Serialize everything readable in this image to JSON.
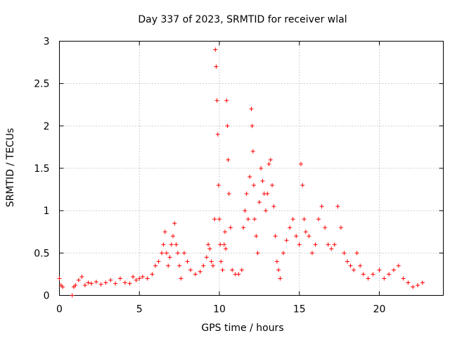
{
  "chart_data": {
    "type": "scatter",
    "title": "Day 337 of 2023, SRMTID for receiver wlal",
    "xlabel": "GPS time / hours",
    "ylabel": "SRMTID / TECUs",
    "xlim": [
      0,
      24
    ],
    "ylim": [
      0,
      3
    ],
    "xticks": [
      0,
      5,
      10,
      15,
      20
    ],
    "xtick_labels": [
      "0",
      "5",
      "10",
      "15",
      "20"
    ],
    "yticks": [
      0,
      0.5,
      1,
      1.5,
      2,
      2.5,
      3
    ],
    "ytick_labels": [
      "0",
      "0.5",
      "1",
      "1.5",
      "2",
      "2.5",
      "3"
    ],
    "grid": true,
    "marker": "+",
    "color": "#ff0000",
    "series": [
      {
        "name": "SRMTID",
        "x": [
          0.0,
          0.1,
          0.2,
          0.8,
          0.9,
          1.0,
          1.2,
          1.4,
          1.6,
          1.8,
          2.0,
          2.3,
          2.6,
          2.9,
          3.2,
          3.5,
          3.8,
          4.1,
          4.4,
          4.6,
          4.8,
          5.0,
          5.2,
          5.5,
          5.8,
          6.0,
          6.2,
          6.4,
          6.5,
          6.6,
          6.7,
          6.8,
          6.9,
          7.0,
          7.1,
          7.2,
          7.3,
          7.4,
          7.5,
          7.6,
          7.8,
          8.0,
          8.2,
          8.5,
          8.8,
          9.0,
          9.2,
          9.3,
          9.4,
          9.5,
          9.6,
          9.7,
          9.75,
          9.8,
          9.85,
          9.9,
          9.95,
          10.0,
          10.05,
          10.1,
          10.2,
          10.3,
          10.35,
          10.4,
          10.45,
          10.5,
          10.55,
          10.6,
          10.7,
          10.8,
          11.0,
          11.2,
          11.4,
          11.5,
          11.6,
          11.7,
          11.8,
          11.9,
          12.0,
          12.05,
          12.1,
          12.15,
          12.2,
          12.3,
          12.4,
          12.5,
          12.6,
          12.7,
          12.8,
          12.9,
          13.0,
          13.1,
          13.2,
          13.3,
          13.4,
          13.5,
          13.6,
          13.7,
          13.8,
          14.0,
          14.2,
          14.4,
          14.6,
          14.8,
          15.0,
          15.1,
          15.2,
          15.3,
          15.4,
          15.6,
          15.8,
          16.0,
          16.2,
          16.4,
          16.6,
          16.8,
          17.0,
          17.2,
          17.4,
          17.6,
          17.8,
          18.0,
          18.2,
          18.4,
          18.6,
          18.8,
          19.0,
          19.3,
          19.6,
          20.0,
          20.3,
          20.6,
          20.9,
          21.2,
          21.5,
          21.8,
          22.1,
          22.4,
          22.7
        ],
        "y": [
          0.2,
          0.12,
          0.1,
          0.0,
          0.1,
          0.12,
          0.18,
          0.22,
          0.12,
          0.15,
          0.14,
          0.16,
          0.13,
          0.15,
          0.18,
          0.14,
          0.2,
          0.15,
          0.14,
          0.22,
          0.18,
          0.2,
          0.22,
          0.2,
          0.25,
          0.35,
          0.4,
          0.5,
          0.6,
          0.75,
          0.5,
          0.35,
          0.45,
          0.6,
          0.7,
          0.85,
          0.6,
          0.5,
          0.35,
          0.2,
          0.5,
          0.4,
          0.3,
          0.25,
          0.28,
          0.35,
          0.45,
          0.6,
          0.55,
          0.4,
          0.35,
          0.9,
          2.9,
          2.7,
          2.3,
          1.9,
          1.3,
          0.9,
          0.6,
          0.4,
          0.3,
          0.6,
          0.75,
          0.55,
          2.3,
          2.0,
          1.6,
          1.2,
          0.8,
          0.3,
          0.25,
          0.25,
          0.3,
          0.8,
          1.0,
          1.2,
          0.9,
          1.4,
          2.2,
          2.0,
          1.7,
          1.3,
          0.9,
          0.7,
          0.5,
          1.1,
          1.5,
          1.35,
          1.2,
          1.0,
          1.2,
          1.55,
          1.6,
          1.3,
          1.05,
          0.7,
          0.4,
          0.3,
          0.2,
          0.5,
          0.65,
          0.8,
          0.9,
          0.7,
          0.6,
          1.55,
          1.3,
          0.9,
          0.75,
          0.7,
          0.5,
          0.6,
          0.9,
          1.05,
          0.8,
          0.6,
          0.55,
          0.6,
          1.05,
          0.8,
          0.5,
          0.4,
          0.35,
          0.3,
          0.5,
          0.35,
          0.25,
          0.2,
          0.25,
          0.3,
          0.2,
          0.25,
          0.3,
          0.35,
          0.2,
          0.15,
          0.1,
          0.12,
          0.15
        ]
      }
    ]
  }
}
